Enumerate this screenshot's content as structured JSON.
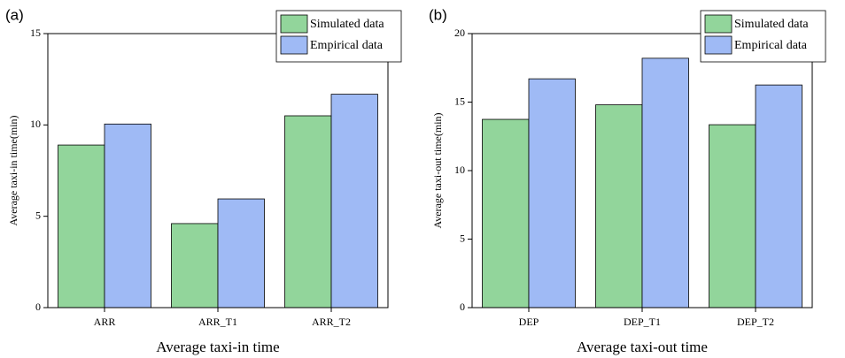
{
  "chart_data": [
    {
      "type": "bar",
      "panel_label": "(a)",
      "title": "Average taxi-in time",
      "y_label": "Average taxi-in time(min)",
      "categories": [
        "ARR",
        "ARR_T1",
        "ARR_T2"
      ],
      "series": [
        {
          "name": "Simulated data",
          "color": "#92d59b",
          "values": [
            8.9,
            4.6,
            10.5
          ]
        },
        {
          "name": "Empirical data",
          "color": "#9fbaf5",
          "values": [
            10.05,
            5.95,
            11.68
          ]
        }
      ],
      "ylim": [
        0,
        15
      ],
      "yticks": [
        0,
        5,
        10,
        15
      ],
      "legend": "upper right"
    },
    {
      "type": "bar",
      "panel_label": "(b)",
      "title": "Average taxi-out time",
      "y_label": "Average taxi-out time(min)",
      "categories": [
        "DEP",
        "DEP_T1",
        "DEP_T2"
      ],
      "series": [
        {
          "name": "Simulated data",
          "color": "#92d59b",
          "values": [
            13.74,
            14.8,
            13.35
          ]
        },
        {
          "name": "Empirical data",
          "color": "#9fbaf5",
          "values": [
            16.7,
            18.2,
            16.25
          ]
        }
      ],
      "ylim": [
        0,
        20
      ],
      "yticks": [
        0,
        5,
        10,
        15,
        20
      ],
      "legend": "upper right"
    }
  ]
}
